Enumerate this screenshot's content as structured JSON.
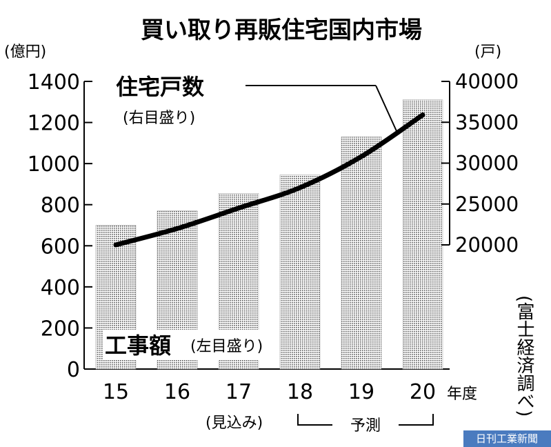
{
  "chart_data": {
    "type": "bar",
    "title": "買い取り再販住宅国内市場",
    "left_unit": "(億円)",
    "right_unit": "(戸)",
    "categories": [
      "15",
      "16",
      "17",
      "18",
      "19",
      "20"
    ],
    "x_suffix": "年度",
    "annotations": {
      "mikomi": "(見込み)",
      "yosoku": "予測"
    },
    "series": [
      {
        "name": "工事額",
        "name_sub": "(左目盛り)",
        "type": "bar",
        "axis": "left",
        "values": [
          700,
          770,
          855,
          945,
          1130,
          1310
        ]
      },
      {
        "name": "住宅戸数",
        "name_sub": "(右目盛り)",
        "type": "line",
        "axis": "right",
        "values": [
          20000,
          22000,
          24500,
          27000,
          30800,
          35900
        ]
      }
    ],
    "left_axis": {
      "ylim": [
        0,
        1400
      ],
      "ticks": [
        "0",
        "200",
        "400",
        "600",
        "800",
        "1000",
        "1200",
        "1400"
      ]
    },
    "right_axis": {
      "ylim": [
        20000,
        40000
      ],
      "ticks": [
        "20000",
        "25000",
        "30000",
        "35000",
        "40000"
      ]
    },
    "grid": false,
    "source": "(富士経済調べ)",
    "credit": "日刊工業新聞"
  },
  "colors": {
    "bar_fill": "#b8b8b8",
    "line": "#000000",
    "background": "#ffffff"
  }
}
